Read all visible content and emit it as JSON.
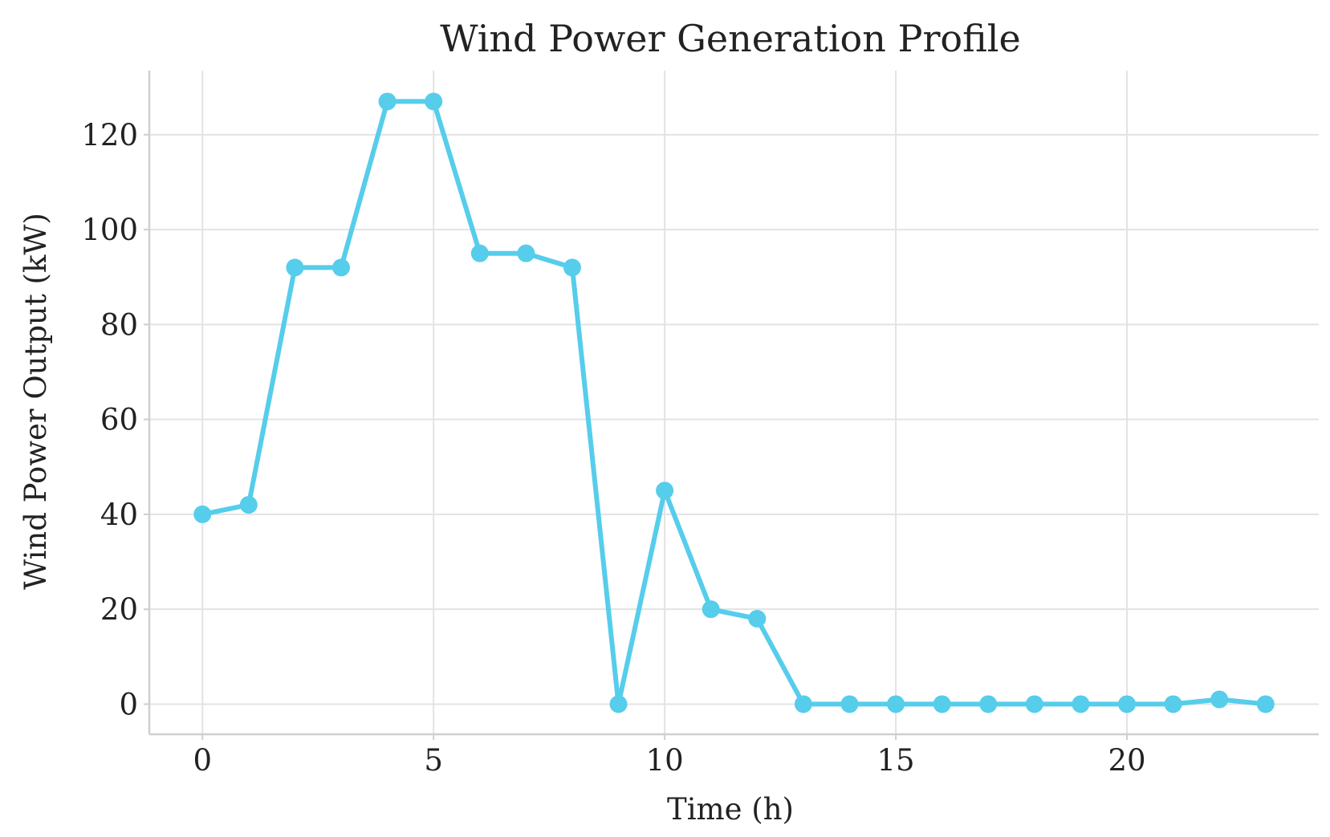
{
  "chart_data": {
    "type": "line",
    "title": "Wind Power Generation Profile",
    "xlabel": "Time (h)",
    "ylabel": "Wind Power Output (kW)",
    "xlim": [
      -1.15,
      24.15
    ],
    "ylim": [
      -6.35,
      133.5
    ],
    "xticks": [
      0,
      5,
      10,
      15,
      20
    ],
    "yticks": [
      0,
      20,
      40,
      60,
      80,
      100,
      120
    ],
    "grid": true,
    "legend": "none",
    "series": [
      {
        "color": "#56cdeb",
        "marker": "circle",
        "x": [
          0,
          1,
          2,
          3,
          4,
          5,
          6,
          7,
          8,
          9,
          10,
          11,
          12,
          13,
          14,
          15,
          16,
          17,
          18,
          19,
          20,
          21,
          22,
          23
        ],
        "y": [
          40,
          42,
          92,
          92,
          127,
          127,
          95,
          95,
          92,
          0,
          45,
          20,
          18,
          0,
          0,
          0,
          0,
          0,
          0,
          0,
          0,
          0,
          1,
          0
        ]
      }
    ]
  }
}
